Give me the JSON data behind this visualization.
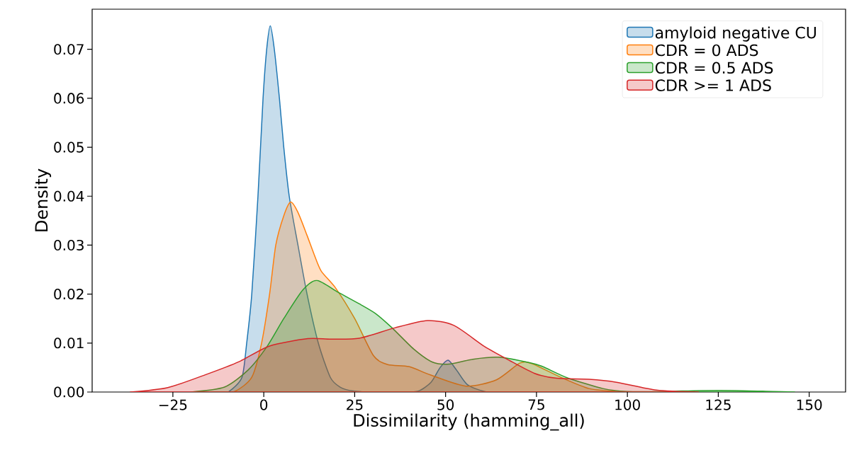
{
  "chart_data": {
    "type": "area",
    "xlabel": "Dissimilarity (hamming_all)",
    "ylabel": "Density",
    "xlim": [
      -47.2,
      160
    ],
    "ylim": [
      0,
      0.0782
    ],
    "xticks": [
      {
        "value": -25,
        "label": "−25"
      },
      0,
      25,
      50,
      75,
      100,
      125,
      150
    ],
    "yticks": [
      {
        "value": 0,
        "label": "0.00"
      },
      {
        "value": 0.01,
        "label": "0.01"
      },
      {
        "value": 0.02,
        "label": "0.02"
      },
      {
        "value": 0.03,
        "label": "0.03"
      },
      {
        "value": 0.04,
        "label": "0.04"
      },
      {
        "value": 0.05,
        "label": "0.05"
      },
      {
        "value": 0.06,
        "label": "0.06"
      },
      {
        "value": 0.07,
        "label": "0.07"
      }
    ],
    "legend": "top right",
    "grid": false,
    "series": [
      {
        "name": "amyloid negative CU",
        "color": "#1f77b4",
        "x": [
          -12,
          -9.6,
          -6,
          -4.7,
          -3.3,
          -1.6,
          -0.2,
          0.8,
          1.8,
          2.9,
          4.3,
          5.5,
          7,
          9.4,
          11.9,
          15,
          18.3,
          21,
          24.6,
          30,
          38,
          42.5,
          46,
          48.5,
          50.7,
          53,
          56,
          60.7,
          65
        ],
        "values": [
          0,
          0.0001,
          0.003,
          0.01,
          0.02,
          0.04,
          0.06,
          0.07,
          0.0748,
          0.07,
          0.06,
          0.05,
          0.04,
          0.03,
          0.02,
          0.01,
          0.003,
          0.001,
          0.0002,
          0,
          0,
          0.0002,
          0.002,
          0.005,
          0.0065,
          0.0045,
          0.0015,
          0.0001,
          0
        ]
      },
      {
        "name": "CDR = 0 ADS",
        "color": "#ff7f0e",
        "x": [
          -12,
          -8,
          -3.3,
          -0.6,
          1.6,
          3.3,
          5.5,
          7.4,
          9.4,
          11.9,
          13.9,
          15.8,
          19.7,
          25,
          30.2,
          34.1,
          39.9,
          45.8,
          55.6,
          64,
          70.4,
          73.7,
          82,
          89.5,
          97,
          100
        ],
        "values": [
          0,
          0.0001,
          0.003,
          0.01,
          0.02,
          0.03,
          0.036,
          0.0388,
          0.0367,
          0.032,
          0.028,
          0.0247,
          0.0213,
          0.015,
          0.0074,
          0.0056,
          0.0052,
          0.0035,
          0.0012,
          0.0025,
          0.0059,
          0.0058,
          0.0029,
          0.0007,
          0.0001,
          0
        ]
      },
      {
        "name": "CDR = 0.5 ADS",
        "color": "#2ca02c",
        "x": [
          -20,
          -10.8,
          -4.3,
          0.9,
          5.5,
          10.7,
          14.6,
          20.4,
          26.3,
          30.8,
          35.3,
          41.2,
          46.4,
          51,
          57.5,
          64.6,
          73.1,
          76.7,
          83.5,
          93.3,
          100,
          110,
          120,
          130,
          140,
          146
        ],
        "values": [
          0,
          0.001,
          0.0045,
          0.0093,
          0.015,
          0.0208,
          0.0228,
          0.0204,
          0.018,
          0.016,
          0.0131,
          0.0088,
          0.0061,
          0.0057,
          0.0067,
          0.0071,
          0.006,
          0.0052,
          0.0029,
          0.0007,
          0.0001,
          0.0001,
          0.0003,
          0.0003,
          0.0001,
          0
        ]
      },
      {
        "name": "CDR >= 1 ADS",
        "color": "#d62728",
        "x": [
          -36.7,
          -26.4,
          -15.8,
          -6.8,
          1.6,
          12.1,
          18.5,
          26.3,
          36,
          45,
          52.3,
          60.7,
          67.2,
          74.5,
          80.6,
          89.5,
          97,
          108,
          119.6
        ],
        "values": [
          0,
          0.0009,
          0.0036,
          0.0062,
          0.0094,
          0.0109,
          0.0108,
          0.011,
          0.0131,
          0.0146,
          0.0136,
          0.0093,
          0.0066,
          0.0038,
          0.0028,
          0.0026,
          0.002,
          0.0004,
          0
        ]
      }
    ]
  }
}
